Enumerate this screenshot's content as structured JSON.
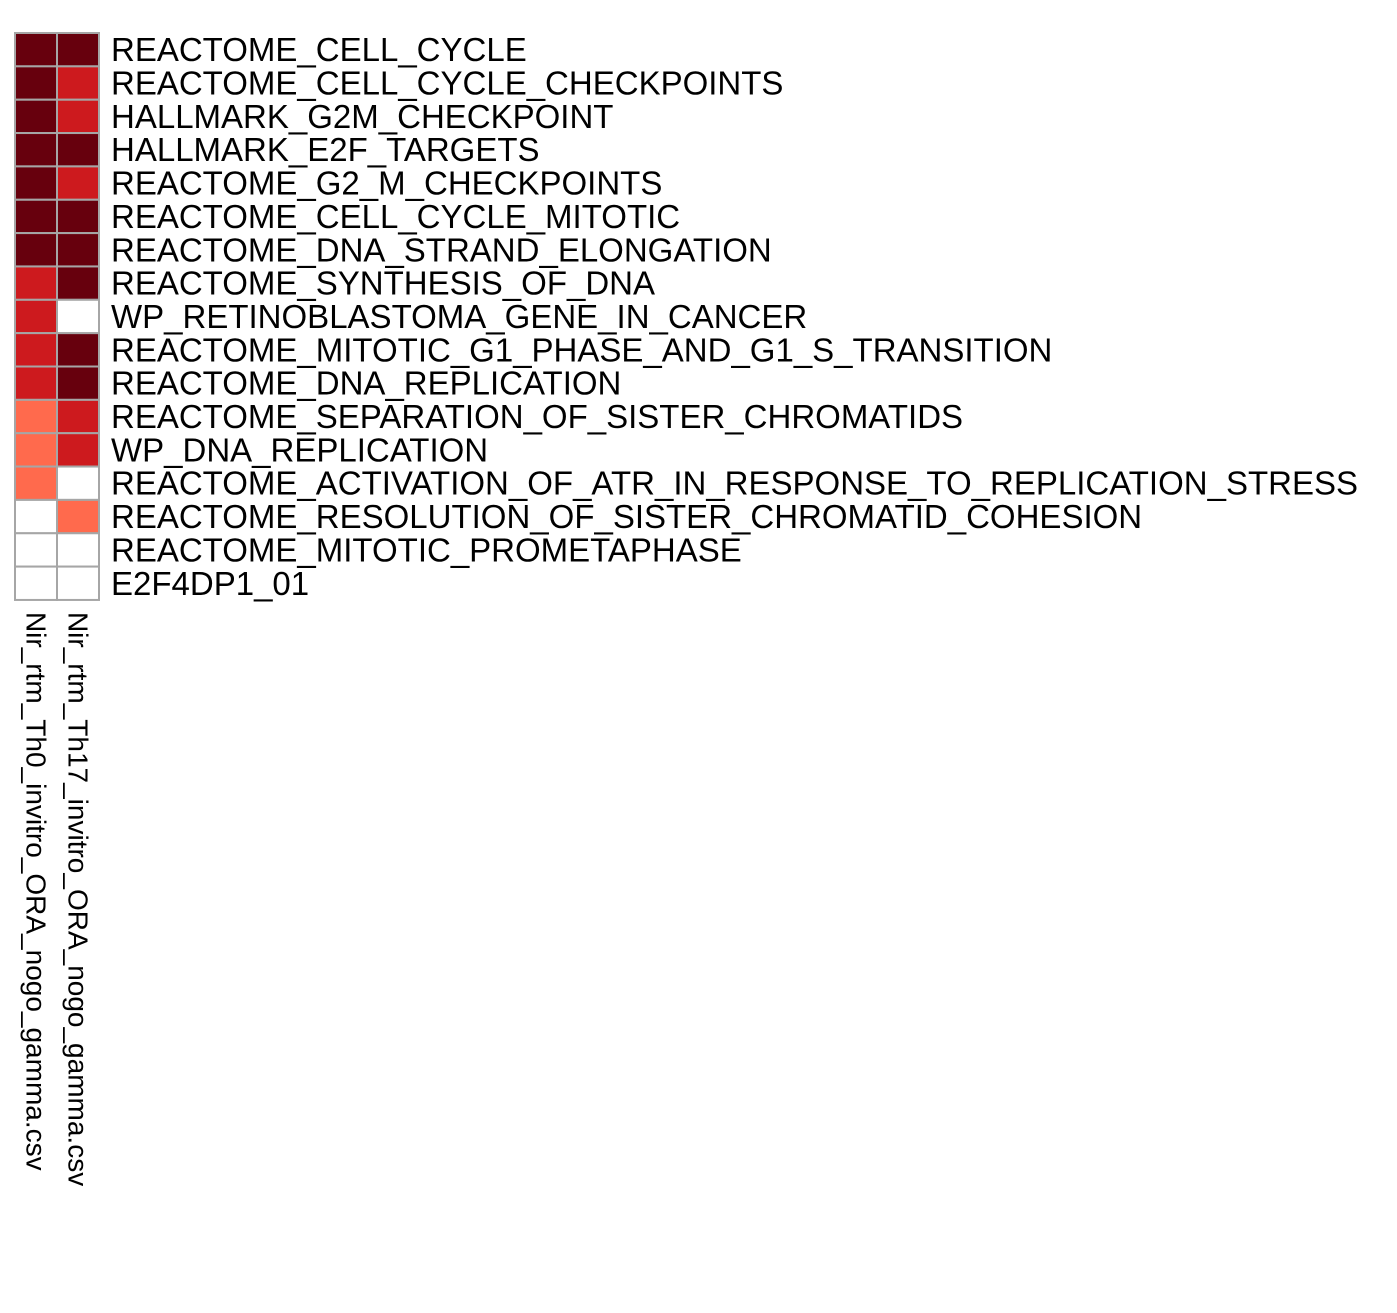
{
  "chart_data": {
    "type": "heatmap",
    "columns": [
      "Nir_rtm_Th0_invitro_ORA_nogo_gamma.csv",
      "Nir_rtm_Th17_invitro_ORA_nogo_gamma.csv"
    ],
    "rows": [
      "REACTOME_CELL_CYCLE",
      "REACTOME_CELL_CYCLE_CHECKPOINTS",
      "HALLMARK_G2M_CHECKPOINT",
      "HALLMARK_E2F_TARGETS",
      "REACTOME_G2_M_CHECKPOINTS",
      "REACTOME_CELL_CYCLE_MITOTIC",
      "REACTOME_DNA_STRAND_ELONGATION",
      "REACTOME_SYNTHESIS_OF_DNA",
      "WP_RETINOBLASTOMA_GENE_IN_CANCER",
      "REACTOME_MITOTIC_G1_PHASE_AND_G1_S_TRANSITION",
      "REACTOME_DNA_REPLICATION",
      "REACTOME_SEPARATION_OF_SISTER_CHROMATIDS",
      "WP_DNA_REPLICATION",
      "REACTOME_ACTIVATION_OF_ATR_IN_RESPONSE_TO_REPLICATION_STRESS",
      "REACTOME_RESOLUTION_OF_SISTER_CHROMATID_COHESION",
      "REACTOME_MITOTIC_PROMETAPHASE",
      "E2F4DP1_01"
    ],
    "values": [
      [
        3,
        3
      ],
      [
        3,
        2
      ],
      [
        3,
        2
      ],
      [
        3,
        3
      ],
      [
        3,
        2
      ],
      [
        3,
        3
      ],
      [
        3,
        3
      ],
      [
        2,
        3
      ],
      [
        2,
        0
      ],
      [
        2,
        3
      ],
      [
        2,
        3
      ],
      [
        1,
        2
      ],
      [
        1,
        2
      ],
      [
        1,
        0
      ],
      [
        0,
        1
      ],
      [
        0,
        0
      ],
      [
        0,
        0
      ]
    ],
    "level_colors": [
      "#FFFFFF",
      "#FF6A4D",
      "#CD1A1E",
      "#67000D"
    ],
    "cell_border_color": "#A6A6A6"
  }
}
